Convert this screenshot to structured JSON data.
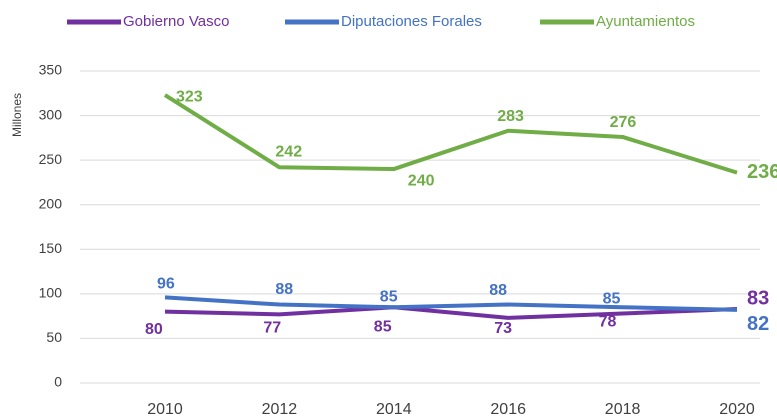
{
  "chart_data": {
    "type": "line",
    "y_label": "Millones",
    "categories": [
      "2010",
      "2012",
      "2014",
      "2016",
      "2018",
      "2020"
    ],
    "series": [
      {
        "name": "Gobierno Vasco",
        "color": "#7030a0",
        "values": [
          80,
          77,
          85,
          73,
          78,
          83
        ]
      },
      {
        "name": "Diputaciones Forales",
        "color": "#4472c4",
        "values": [
          96,
          88,
          85,
          88,
          85,
          82
        ]
      },
      {
        "name": "Ayuntamientos",
        "color": "#70ad47",
        "values": [
          323,
          242,
          240,
          283,
          276,
          236
        ]
      }
    ],
    "ylim": [
      0,
      350
    ],
    "yticks": [
      0,
      50,
      100,
      150,
      200,
      250,
      300,
      350
    ],
    "grid": true,
    "legend": "top"
  }
}
